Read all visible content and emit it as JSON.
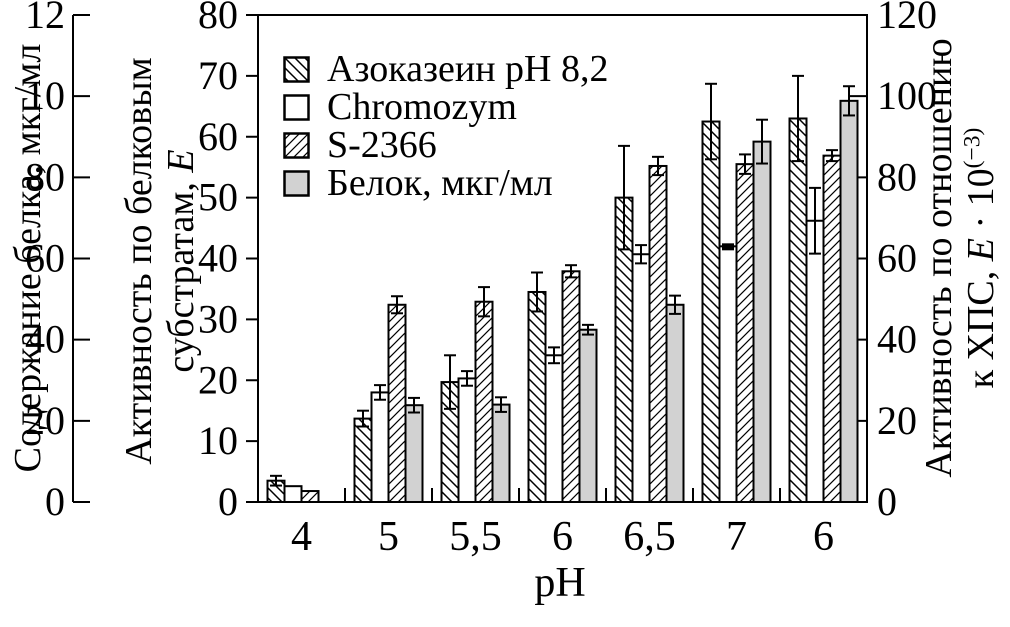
{
  "colors": {
    "bar_gray": "#d2d2d2",
    "stroke": "#000000",
    "background": "#ffffff"
  },
  "labels": {
    "left_outer_title": "Содержание белка, мкг/мл",
    "left_inner": {
      "line1": "Активность по белковым",
      "line2_pre": "субстратам, ",
      "line2_italic": "E"
    },
    "right": {
      "line1": "Активность по отношению",
      "line2_pre": "к ХПС, ",
      "line2_italic": "E",
      "line2_mid": " · 10",
      "line2_sup": "(−3)"
    },
    "x_title": "pH"
  },
  "chart_data": {
    "type": "bar",
    "title": "",
    "xlabel": "pH",
    "x_categories": [
      "4",
      "5",
      "5,5",
      "6",
      "6,5",
      "7",
      "6"
    ],
    "grid": false,
    "legend_position": "upper-left-inside",
    "axes": {
      "left_outer": {
        "title": "Содержание белка, мкг/мл",
        "tick_labels_top_to_bottom": [
          "12",
          "10",
          "80",
          "60",
          "40",
          "20",
          "0"
        ]
      },
      "left_inner": {
        "title": "Активность по белковым субстратам, E",
        "range": [
          0,
          80
        ],
        "tick_labels_top_to_bottom": [
          "80",
          "70",
          "60",
          "50",
          "40",
          "30",
          "20",
          "10",
          "0"
        ]
      },
      "right": {
        "title": "Активность по отношению к ХПС, E·10^(−3)",
        "range": [
          0,
          120
        ],
        "tick_labels_top_to_bottom": [
          "120",
          "100",
          "80",
          "60",
          "40",
          "20",
          "0"
        ]
      }
    },
    "series": [
      {
        "name": "Азоказеин pH 8,2",
        "swatch": "hatch-backslash",
        "axis": "left_inner (E, 0–80)",
        "values": [
          3.5,
          13.7,
          19.7,
          34.5,
          50.0,
          62.5,
          63.0
        ],
        "errors": [
          0.8,
          1.3,
          4.4,
          3.2,
          8.5,
          6.2,
          7.0
        ]
      },
      {
        "name": "Chromozym",
        "swatch": "white",
        "axis": "left_inner (E, 0–80)",
        "values": [
          2.6,
          18.0,
          20.3,
          24.1,
          40.7,
          42.0,
          46.2
        ],
        "errors": [
          0,
          1.2,
          1.2,
          1.3,
          1.5,
          0.5,
          5.4
        ]
      },
      {
        "name": "S-2366",
        "swatch": "hatch-slash",
        "axis": "left_inner (E, 0–80)",
        "values": [
          1.8,
          32.4,
          32.9,
          37.9,
          55.2,
          55.5,
          56.9
        ],
        "errors": [
          0,
          1.4,
          2.4,
          1.0,
          1.5,
          1.6,
          0.9
        ]
      },
      {
        "name": "Белок, мкг/мл",
        "swatch": "gray",
        "axis": "left_outer (мкг/мл, 0–120)",
        "values": [
          0,
          15.9,
          16.0,
          28.3,
          32.4,
          59.2,
          65.9
        ],
        "errors": [
          0,
          1.2,
          1.2,
          0.8,
          1.5,
          3.6,
          2.4
        ],
        "values_ug_ml": [
          0,
          24,
          24,
          42.5,
          48.5,
          89,
          99
        ]
      }
    ]
  }
}
